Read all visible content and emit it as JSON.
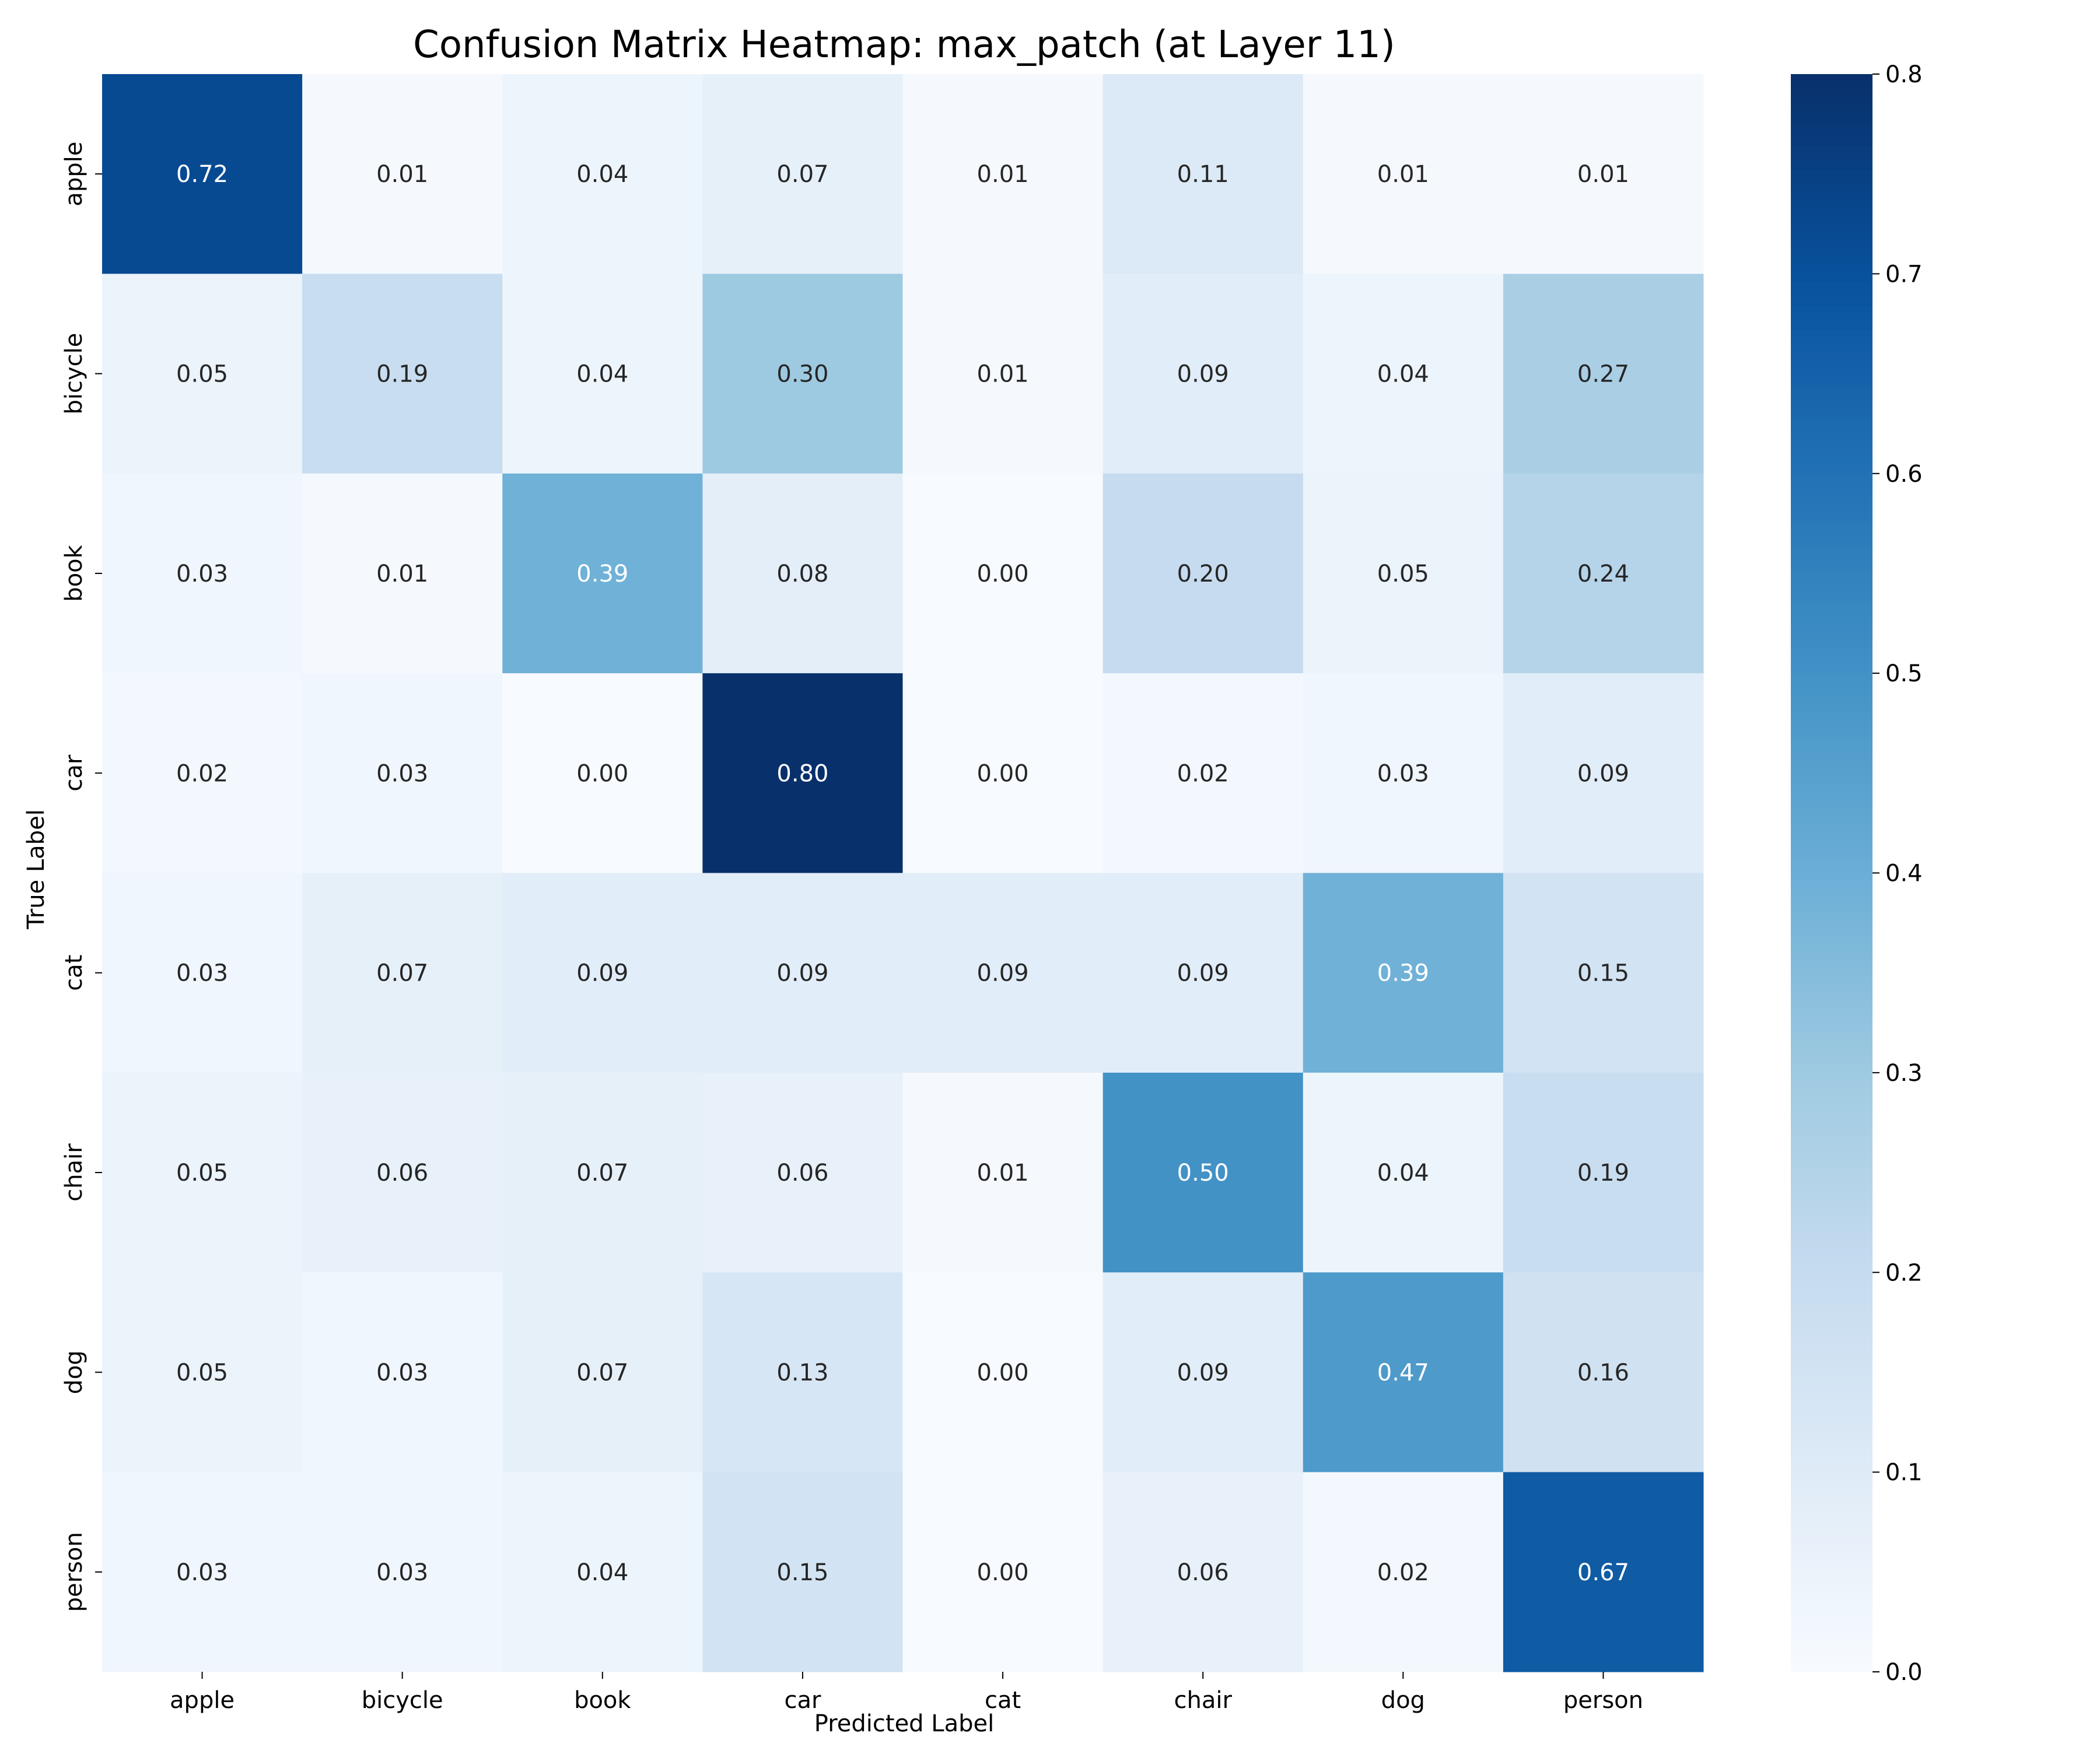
{
  "chart_data": {
    "type": "heatmap",
    "title": "Confusion Matrix Heatmap: max_patch (at Layer 11)",
    "xlabel": "Predicted Label",
    "ylabel": "True Label",
    "x_categories": [
      "apple",
      "bicycle",
      "book",
      "car",
      "cat",
      "chair",
      "dog",
      "person"
    ],
    "y_categories": [
      "apple",
      "bicycle",
      "book",
      "car",
      "cat",
      "chair",
      "dog",
      "person"
    ],
    "values": [
      [
        0.72,
        0.01,
        0.04,
        0.07,
        0.01,
        0.11,
        0.01,
        0.01
      ],
      [
        0.05,
        0.19,
        0.04,
        0.3,
        0.01,
        0.09,
        0.04,
        0.27
      ],
      [
        0.03,
        0.01,
        0.39,
        0.08,
        0.0,
        0.2,
        0.05,
        0.24
      ],
      [
        0.02,
        0.03,
        0.0,
        0.8,
        0.0,
        0.02,
        0.03,
        0.09
      ],
      [
        0.03,
        0.07,
        0.09,
        0.09,
        0.09,
        0.09,
        0.39,
        0.15
      ],
      [
        0.05,
        0.06,
        0.07,
        0.06,
        0.01,
        0.5,
        0.04,
        0.19
      ],
      [
        0.05,
        0.03,
        0.07,
        0.13,
        0.0,
        0.09,
        0.47,
        0.16
      ],
      [
        0.03,
        0.03,
        0.04,
        0.15,
        0.0,
        0.06,
        0.02,
        0.67
      ]
    ],
    "colormap": "Blues",
    "vmin": 0.0,
    "vmax": 0.8,
    "colorbar_ticks": [
      "0.0",
      "0.1",
      "0.2",
      "0.3",
      "0.4",
      "0.5",
      "0.6",
      "0.7",
      "0.8"
    ],
    "grid": false
  }
}
